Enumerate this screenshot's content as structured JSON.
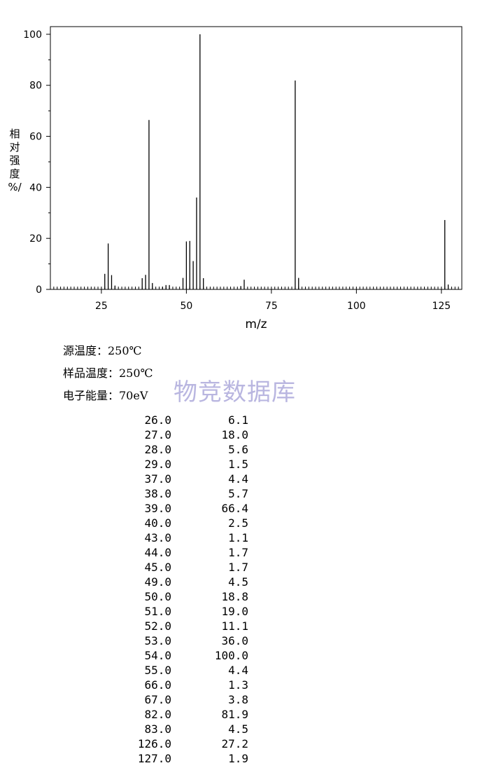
{
  "chart_data": {
    "type": "bar",
    "xlabel": "m/z",
    "ylabel_chars": [
      "相",
      "对",
      "强",
      "度",
      "%/"
    ],
    "xlim": [
      10,
      131
    ],
    "ylim": [
      0,
      103
    ],
    "xticks": [
      25,
      50,
      75,
      100,
      125
    ],
    "yticks": [
      0,
      20,
      40,
      60,
      80,
      100
    ],
    "grid": false,
    "x": [
      26,
      27,
      28,
      29,
      37,
      38,
      39,
      40,
      43,
      44,
      45,
      49,
      50,
      51,
      52,
      53,
      54,
      55,
      66,
      67,
      82,
      83,
      126,
      127
    ],
    "values": [
      6.1,
      18.0,
      5.6,
      1.5,
      4.4,
      5.7,
      66.4,
      2.5,
      1.1,
      1.7,
      1.7,
      4.5,
      18.8,
      19.0,
      11.1,
      36.0,
      100.0,
      4.4,
      1.3,
      3.8,
      81.9,
      4.5,
      27.2,
      1.9
    ]
  },
  "conditions": {
    "source_temp": "源温度：250℃",
    "sample_temp": "样品温度：250℃",
    "electron_energy": "电子能量：70eV"
  },
  "watermark": "物竞数据库",
  "peak_table": [
    {
      "mz": "26.0",
      "intensity": "6.1"
    },
    {
      "mz": "27.0",
      "intensity": "18.0"
    },
    {
      "mz": "28.0",
      "intensity": "5.6"
    },
    {
      "mz": "29.0",
      "intensity": "1.5"
    },
    {
      "mz": "37.0",
      "intensity": "4.4"
    },
    {
      "mz": "38.0",
      "intensity": "5.7"
    },
    {
      "mz": "39.0",
      "intensity": "66.4"
    },
    {
      "mz": "40.0",
      "intensity": "2.5"
    },
    {
      "mz": "43.0",
      "intensity": "1.1"
    },
    {
      "mz": "44.0",
      "intensity": "1.7"
    },
    {
      "mz": "45.0",
      "intensity": "1.7"
    },
    {
      "mz": "49.0",
      "intensity": "4.5"
    },
    {
      "mz": "50.0",
      "intensity": "18.8"
    },
    {
      "mz": "51.0",
      "intensity": "19.0"
    },
    {
      "mz": "52.0",
      "intensity": "11.1"
    },
    {
      "mz": "53.0",
      "intensity": "36.0"
    },
    {
      "mz": "54.0",
      "intensity": "100.0"
    },
    {
      "mz": "55.0",
      "intensity": "4.4"
    },
    {
      "mz": "66.0",
      "intensity": "1.3"
    },
    {
      "mz": "67.0",
      "intensity": "3.8"
    },
    {
      "mz": "82.0",
      "intensity": "81.9"
    },
    {
      "mz": "83.0",
      "intensity": "4.5"
    },
    {
      "mz": "126.0",
      "intensity": "27.2"
    },
    {
      "mz": "127.0",
      "intensity": "1.9"
    }
  ]
}
